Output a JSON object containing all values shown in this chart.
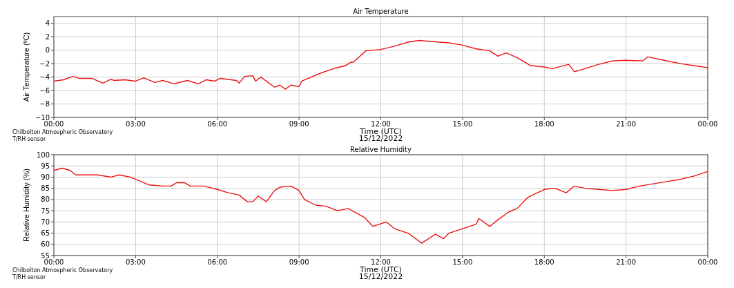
{
  "chart_data": [
    {
      "type": "line",
      "title": "Air Temperature",
      "xlabel": "Time (UTC)",
      "ylabel": "Air Temperature (ºC)",
      "annotations": [
        "15/12/2022",
        "Chilbolton Atmospheric Observatory",
        "T/RH sensor"
      ],
      "xlim": [
        0,
        24
      ],
      "xticks": [
        {
          "value": 0,
          "label": "00:00"
        },
        {
          "value": 3,
          "label": "03:00"
        },
        {
          "value": 6,
          "label": "06:00"
        },
        {
          "value": 9,
          "label": "09:00"
        },
        {
          "value": 12,
          "label": "12:00"
        },
        {
          "value": 15,
          "label": "15:00"
        },
        {
          "value": 18,
          "label": "18:00"
        },
        {
          "value": 21,
          "label": "21:00"
        },
        {
          "value": 24,
          "label": "00:00"
        }
      ],
      "ylim": [
        -10,
        5
      ],
      "yticks": [
        -10,
        -8,
        -6,
        -4,
        -2,
        0,
        2,
        4
      ],
      "grid": true,
      "series": [
        {
          "color": "#ee1111",
          "x": [
            0,
            0.35,
            0.7,
            0.95,
            1.4,
            1.8,
            2.1,
            2.2,
            2.6,
            3.0,
            3.3,
            3.7,
            4.0,
            4.4,
            4.9,
            5.3,
            5.6,
            5.9,
            6.1,
            6.7,
            6.8,
            7.0,
            7.3,
            7.4,
            7.6,
            8.1,
            8.3,
            8.5,
            8.7,
            9.0,
            9.1,
            9.5,
            9.8,
            10.3,
            10.7,
            10.9,
            11.0,
            11.45,
            12.0,
            12.5,
            13.0,
            13.4,
            14.0,
            14.5,
            15.0,
            15.5,
            16.0,
            16.3,
            16.6,
            17.0,
            17.5,
            18.0,
            18.3,
            18.9,
            19.1,
            19.5,
            20.0,
            20.5,
            21.0,
            21.6,
            21.8,
            22.5,
            23.0,
            23.5,
            24
          ],
          "values": [
            -4.6,
            -4.4,
            -3.9,
            -4.2,
            -4.2,
            -4.9,
            -4.3,
            -4.5,
            -4.4,
            -4.6,
            -4.1,
            -4.8,
            -4.5,
            -5.0,
            -4.5,
            -5.0,
            -4.4,
            -4.6,
            -4.2,
            -4.5,
            -4.9,
            -3.9,
            -3.8,
            -4.6,
            -4.0,
            -5.5,
            -5.2,
            -5.8,
            -5.2,
            -5.4,
            -4.6,
            -3.9,
            -3.4,
            -2.7,
            -2.3,
            -1.8,
            -1.75,
            -0.1,
            0.1,
            0.6,
            1.2,
            1.45,
            1.25,
            1.1,
            0.75,
            0.2,
            -0.1,
            -0.9,
            -0.4,
            -1.1,
            -2.3,
            -2.5,
            -2.75,
            -2.1,
            -3.2,
            -2.75,
            -2.1,
            -1.6,
            -1.5,
            -1.6,
            -1.0,
            -1.6,
            -2.0,
            -2.3,
            -2.6
          ]
        }
      ]
    },
    {
      "type": "line",
      "title": "Relative Humidity",
      "xlabel": "Time (UTC)",
      "ylabel": "Relative Humidity (%)",
      "annotations": [
        "15/12/2022",
        "Chilbolton Atmospheric Observatory",
        "T/RH sensor"
      ],
      "xlim": [
        0,
        24
      ],
      "xticks": [
        {
          "value": 0,
          "label": "00:00"
        },
        {
          "value": 3,
          "label": "03:00"
        },
        {
          "value": 6,
          "label": "06:00"
        },
        {
          "value": 9,
          "label": "09:00"
        },
        {
          "value": 12,
          "label": "12:00"
        },
        {
          "value": 15,
          "label": "15:00"
        },
        {
          "value": 18,
          "label": "18:00"
        },
        {
          "value": 21,
          "label": "21:00"
        },
        {
          "value": 24,
          "label": "00:00"
        }
      ],
      "ylim": [
        55,
        100
      ],
      "yticks": [
        55,
        60,
        65,
        70,
        75,
        80,
        85,
        90,
        95,
        100
      ],
      "grid": true,
      "series": [
        {
          "color": "#ee1111",
          "x": [
            0,
            0.3,
            0.6,
            0.8,
            1.2,
            1.6,
            2.1,
            2.4,
            2.8,
            3.2,
            3.5,
            4.0,
            4.3,
            4.5,
            4.8,
            5.0,
            5.5,
            6.0,
            6.4,
            6.8,
            7.1,
            7.3,
            7.5,
            7.8,
            8.1,
            8.3,
            8.7,
            9.0,
            9.2,
            9.6,
            10.0,
            10.4,
            10.8,
            11.1,
            11.4,
            11.7,
            12.2,
            12.5,
            13.0,
            13.5,
            14.0,
            14.3,
            14.5,
            15.0,
            15.5,
            15.6,
            16.0,
            16.3,
            16.7,
            17.0,
            17.4,
            18.0,
            18.4,
            18.8,
            19.1,
            19.5,
            20.0,
            20.5,
            21.0,
            21.5,
            22.0,
            22.5,
            23.0,
            23.5,
            24
          ],
          "values": [
            93,
            94,
            93,
            91,
            91,
            91,
            90,
            91,
            90,
            88,
            86.5,
            86,
            86,
            87.5,
            87.5,
            86,
            86,
            84.5,
            83,
            82,
            79,
            79,
            81.5,
            79,
            84,
            85.5,
            86,
            84,
            80,
            77.5,
            77,
            75,
            76,
            74,
            72,
            68,
            70,
            67,
            65,
            60.5,
            64.5,
            62.5,
            65,
            67,
            69,
            71.5,
            68,
            71,
            74.5,
            76,
            81,
            84.5,
            85,
            83,
            86,
            85,
            84.5,
            84,
            84.5,
            86,
            87,
            88,
            89,
            90.5,
            92.5
          ]
        }
      ]
    }
  ]
}
